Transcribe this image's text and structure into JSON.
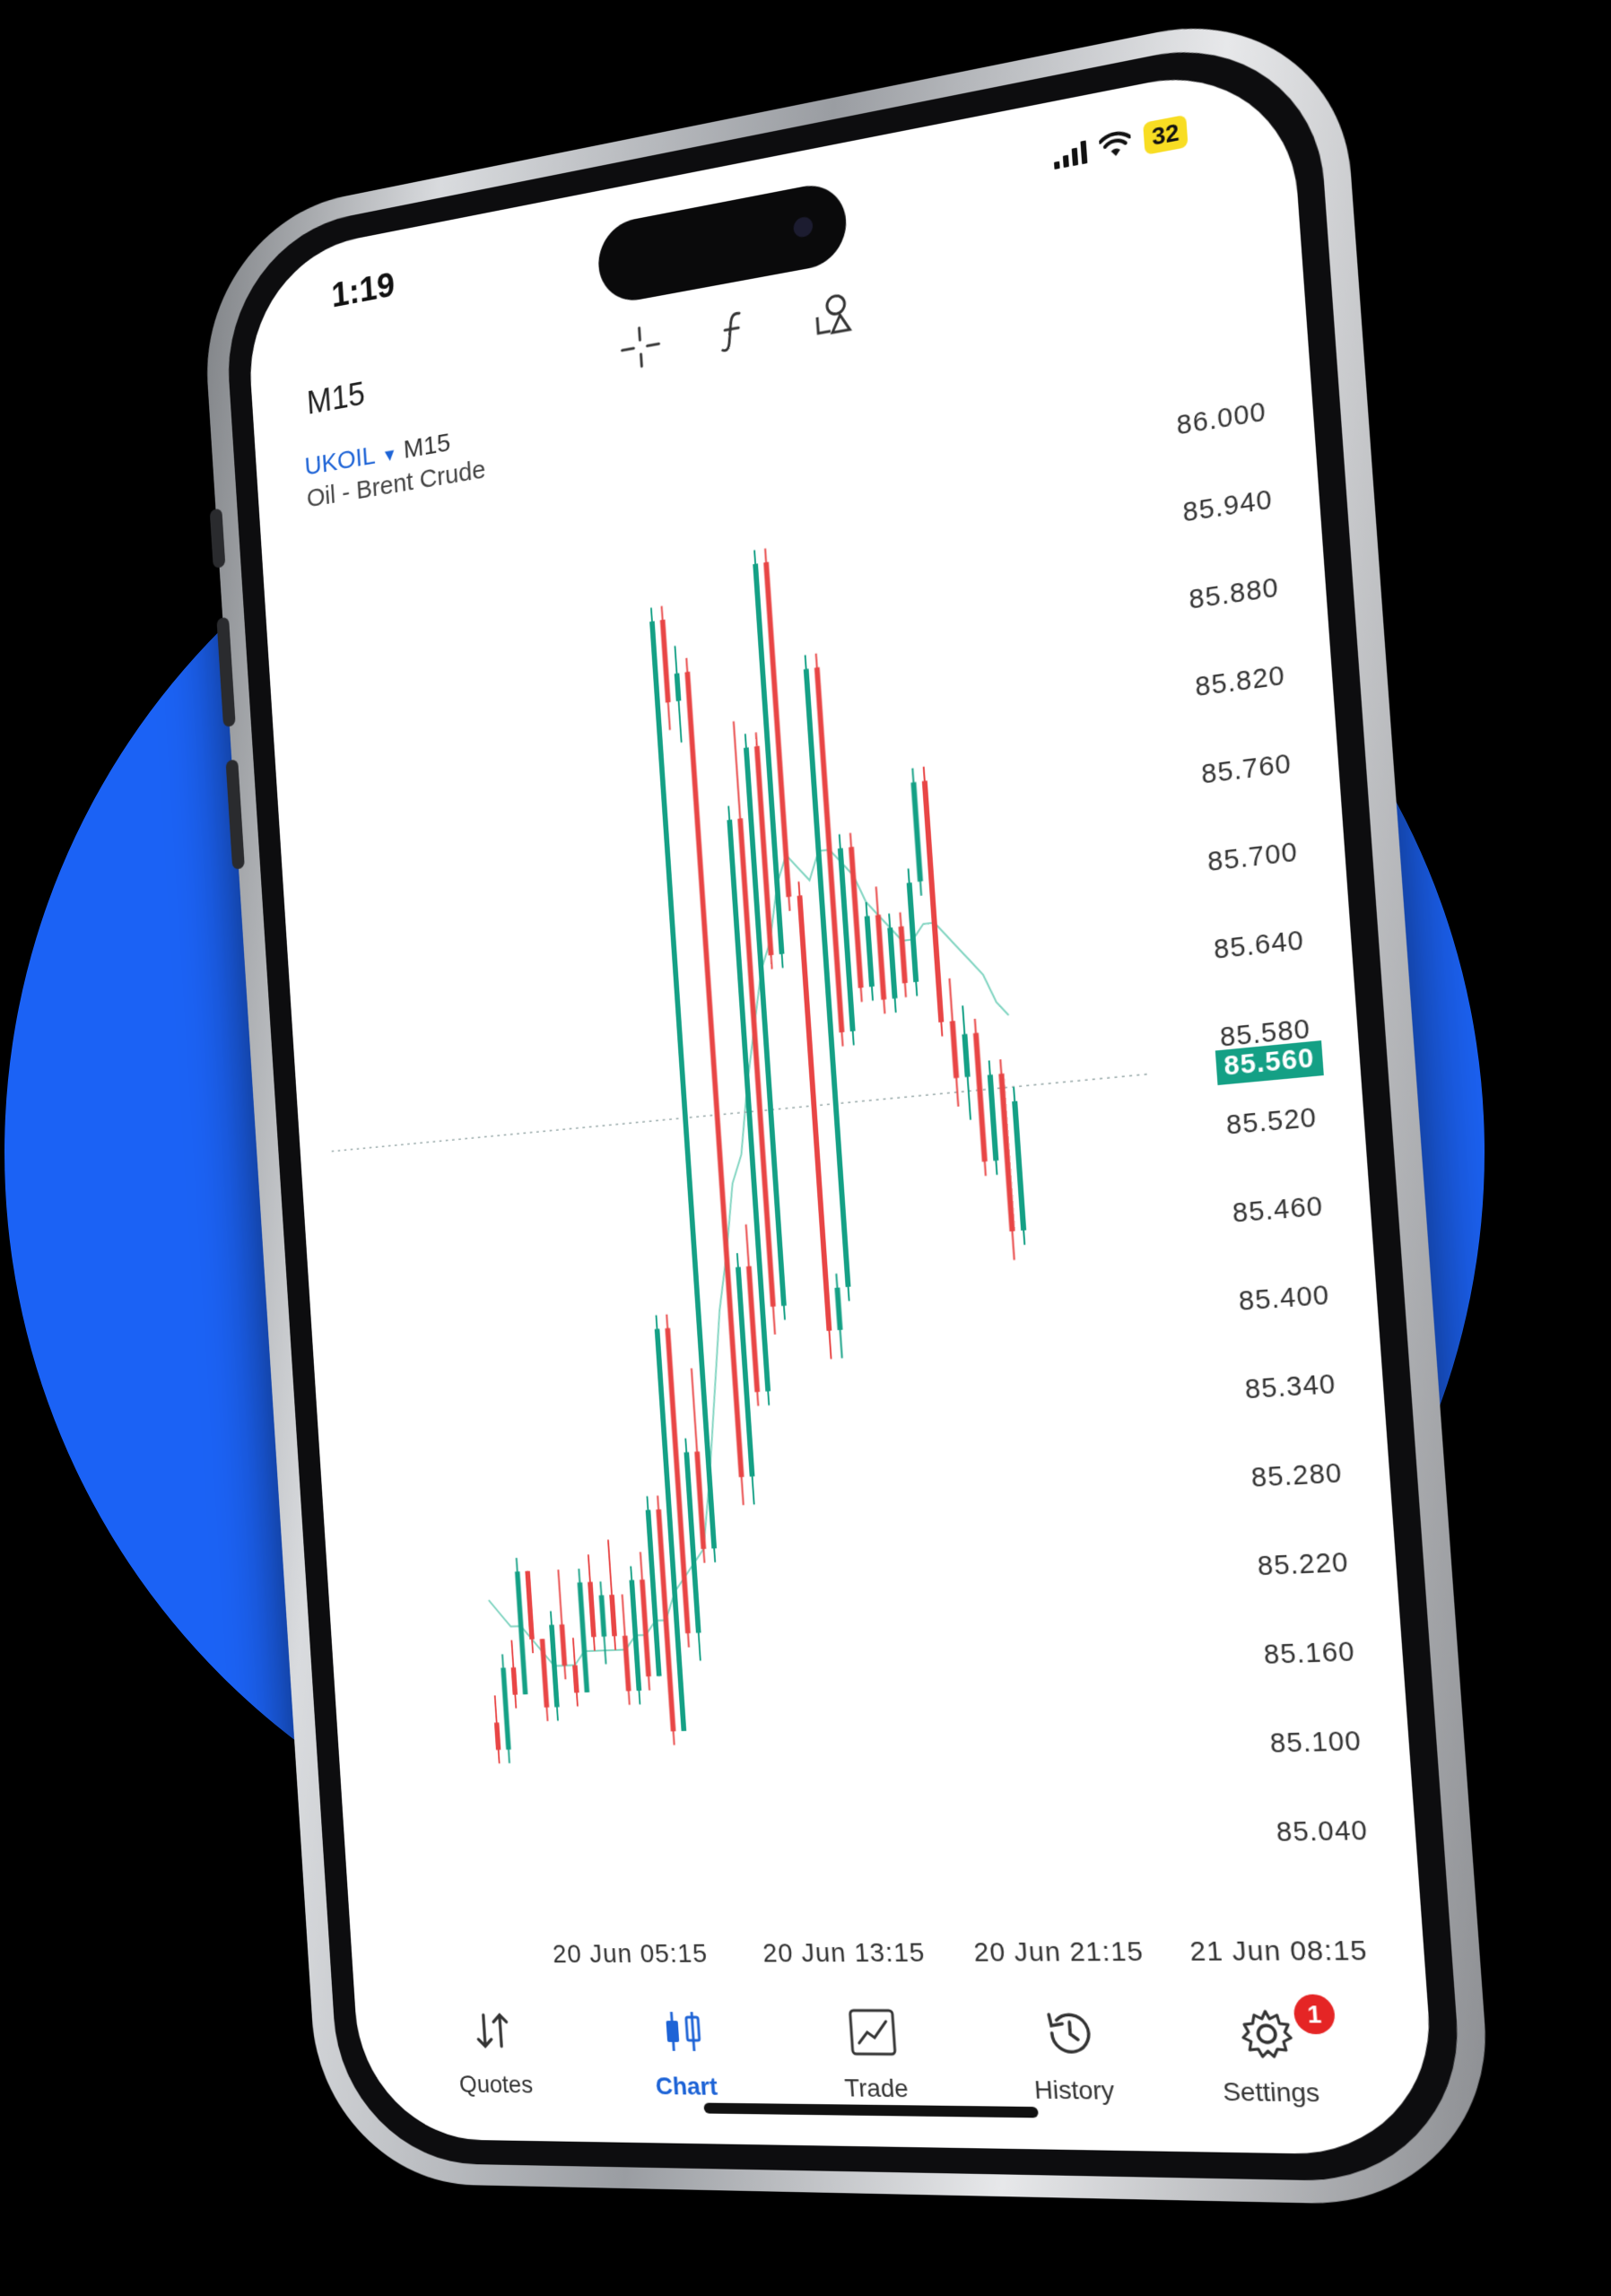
{
  "status_bar": {
    "time": "1:19",
    "battery": "32"
  },
  "toolbar": {
    "timeframe": "M15",
    "tools": [
      {
        "icon": "crosshair-icon"
      },
      {
        "icon": "function-icon"
      },
      {
        "icon": "objects-icon"
      }
    ]
  },
  "chart": {
    "symbol": "UKOIL",
    "symbol_timeframe": "M15",
    "description": "Oil - Brent Crude",
    "current_price": "85.560",
    "colors": {
      "up": "#14a085",
      "down": "#e84545",
      "ma": "#7fd4c0"
    }
  },
  "chart_data": {
    "type": "candlestick",
    "title": "",
    "y_ticks": [
      "86.000",
      "85.940",
      "85.880",
      "85.820",
      "85.760",
      "85.700",
      "85.640",
      "85.580",
      "85.520",
      "85.460",
      "85.400",
      "85.340",
      "85.280",
      "85.220",
      "85.160",
      "85.100",
      "85.040"
    ],
    "ylim": [
      85.0,
      86.04
    ],
    "x_ticks": [
      "20 Jun 05:15",
      "20 Jun 13:15",
      "20 Jun 21:15",
      "21 Jun 08:15"
    ],
    "current_price": 85.56,
    "series": [
      {
        "candles": [
          {
            "o": 85.13,
            "h": 85.15,
            "l": 85.1,
            "c": 85.11
          },
          {
            "o": 85.11,
            "h": 85.18,
            "l": 85.1,
            "c": 85.17
          },
          {
            "o": 85.17,
            "h": 85.19,
            "l": 85.14,
            "c": 85.15
          },
          {
            "o": 85.15,
            "h": 85.25,
            "l": 85.15,
            "c": 85.24
          },
          {
            "o": 85.24,
            "h": 85.24,
            "l": 85.18,
            "c": 85.19
          },
          {
            "o": 85.19,
            "h": 85.19,
            "l": 85.13,
            "c": 85.14
          },
          {
            "o": 85.14,
            "h": 85.21,
            "l": 85.13,
            "c": 85.2
          },
          {
            "o": 85.2,
            "h": 85.24,
            "l": 85.16,
            "c": 85.17
          },
          {
            "o": 85.17,
            "h": 85.19,
            "l": 85.14,
            "c": 85.15
          },
          {
            "o": 85.15,
            "h": 85.24,
            "l": 85.15,
            "c": 85.23
          },
          {
            "o": 85.23,
            "h": 85.25,
            "l": 85.18,
            "c": 85.19
          },
          {
            "o": 85.19,
            "h": 85.23,
            "l": 85.17,
            "c": 85.22
          },
          {
            "o": 85.22,
            "h": 85.26,
            "l": 85.18,
            "c": 85.19
          },
          {
            "o": 85.19,
            "h": 85.22,
            "l": 85.14,
            "c": 85.15
          },
          {
            "o": 85.15,
            "h": 85.24,
            "l": 85.14,
            "c": 85.23
          },
          {
            "o": 85.23,
            "h": 85.25,
            "l": 85.15,
            "c": 85.16
          },
          {
            "o": 85.16,
            "h": 85.29,
            "l": 85.16,
            "c": 85.28
          },
          {
            "o": 85.28,
            "h": 85.29,
            "l": 85.11,
            "c": 85.12
          },
          {
            "o": 85.12,
            "h": 85.42,
            "l": 85.12,
            "c": 85.41
          },
          {
            "o": 85.41,
            "h": 85.42,
            "l": 85.18,
            "c": 85.19
          },
          {
            "o": 85.19,
            "h": 85.33,
            "l": 85.17,
            "c": 85.32
          },
          {
            "o": 85.32,
            "h": 85.38,
            "l": 85.24,
            "c": 85.25
          },
          {
            "o": 85.25,
            "h": 85.93,
            "l": 85.24,
            "c": 85.92
          },
          {
            "o": 85.92,
            "h": 85.93,
            "l": 85.84,
            "c": 85.86
          },
          {
            "o": 85.86,
            "h": 85.9,
            "l": 85.83,
            "c": 85.88
          },
          {
            "o": 85.88,
            "h": 85.89,
            "l": 85.28,
            "c": 85.3
          },
          {
            "o": 85.3,
            "h": 85.46,
            "l": 85.28,
            "c": 85.45
          },
          {
            "o": 85.45,
            "h": 85.48,
            "l": 85.35,
            "c": 85.36
          },
          {
            "o": 85.36,
            "h": 85.78,
            "l": 85.35,
            "c": 85.77
          },
          {
            "o": 85.77,
            "h": 85.84,
            "l": 85.4,
            "c": 85.42
          },
          {
            "o": 85.42,
            "h": 85.83,
            "l": 85.41,
            "c": 85.82
          },
          {
            "o": 85.82,
            "h": 85.83,
            "l": 85.66,
            "c": 85.67
          },
          {
            "o": 85.67,
            "h": 85.96,
            "l": 85.66,
            "c": 85.95
          },
          {
            "o": 85.95,
            "h": 85.96,
            "l": 85.7,
            "c": 85.71
          },
          {
            "o": 85.71,
            "h": 85.72,
            "l": 85.38,
            "c": 85.4
          },
          {
            "o": 85.4,
            "h": 85.44,
            "l": 85.38,
            "c": 85.43
          },
          {
            "o": 85.43,
            "h": 85.88,
            "l": 85.42,
            "c": 85.87
          },
          {
            "o": 85.87,
            "h": 85.88,
            "l": 85.6,
            "c": 85.61
          },
          {
            "o": 85.61,
            "h": 85.75,
            "l": 85.6,
            "c": 85.74
          },
          {
            "o": 85.74,
            "h": 85.75,
            "l": 85.63,
            "c": 85.64
          },
          {
            "o": 85.64,
            "h": 85.7,
            "l": 85.63,
            "c": 85.69
          },
          {
            "o": 85.69,
            "h": 85.71,
            "l": 85.62,
            "c": 85.63
          },
          {
            "o": 85.63,
            "h": 85.69,
            "l": 85.62,
            "c": 85.68
          },
          {
            "o": 85.68,
            "h": 85.69,
            "l": 85.63,
            "c": 85.64
          },
          {
            "o": 85.64,
            "h": 85.72,
            "l": 85.63,
            "c": 85.71
          },
          {
            "o": 85.71,
            "h": 85.79,
            "l": 85.7,
            "c": 85.78
          },
          {
            "o": 85.78,
            "h": 85.79,
            "l": 85.6,
            "c": 85.61
          },
          {
            "o": 85.61,
            "h": 85.64,
            "l": 85.55,
            "c": 85.57
          },
          {
            "o": 85.57,
            "h": 85.62,
            "l": 85.54,
            "c": 85.6
          },
          {
            "o": 85.6,
            "h": 85.61,
            "l": 85.5,
            "c": 85.51
          },
          {
            "o": 85.51,
            "h": 85.58,
            "l": 85.5,
            "c": 85.57
          },
          {
            "o": 85.57,
            "h": 85.58,
            "l": 85.44,
            "c": 85.46
          },
          {
            "o": 85.46,
            "h": 85.56,
            "l": 85.45,
            "c": 85.55
          }
        ],
        "ma": [
          85.22,
          85.21,
          85.2,
          85.2,
          85.19,
          85.18,
          85.17,
          85.17,
          85.17,
          85.18,
          85.18,
          85.18,
          85.18,
          85.18,
          85.19,
          85.19,
          85.2,
          85.2,
          85.22,
          85.23,
          85.24,
          85.25,
          85.3,
          85.36,
          85.42,
          85.46,
          85.51,
          85.53,
          85.58,
          85.62,
          85.66,
          85.68,
          85.72,
          85.74,
          85.73,
          85.72,
          85.74,
          85.74,
          85.73,
          85.72,
          85.7,
          85.69,
          85.68,
          85.67,
          85.67,
          85.68,
          85.68,
          85.67,
          85.66,
          85.65,
          85.64,
          85.62,
          85.61
        ]
      }
    ]
  },
  "tabs": [
    {
      "label": "Quotes",
      "icon": "arrows-updown-icon",
      "active": false
    },
    {
      "label": "Chart",
      "icon": "candlestick-icon",
      "active": true
    },
    {
      "label": "Trade",
      "icon": "trade-chart-icon",
      "active": false
    },
    {
      "label": "History",
      "icon": "history-icon",
      "active": false
    },
    {
      "label": "Settings",
      "icon": "gear-icon",
      "active": false,
      "badge": "1"
    }
  ]
}
